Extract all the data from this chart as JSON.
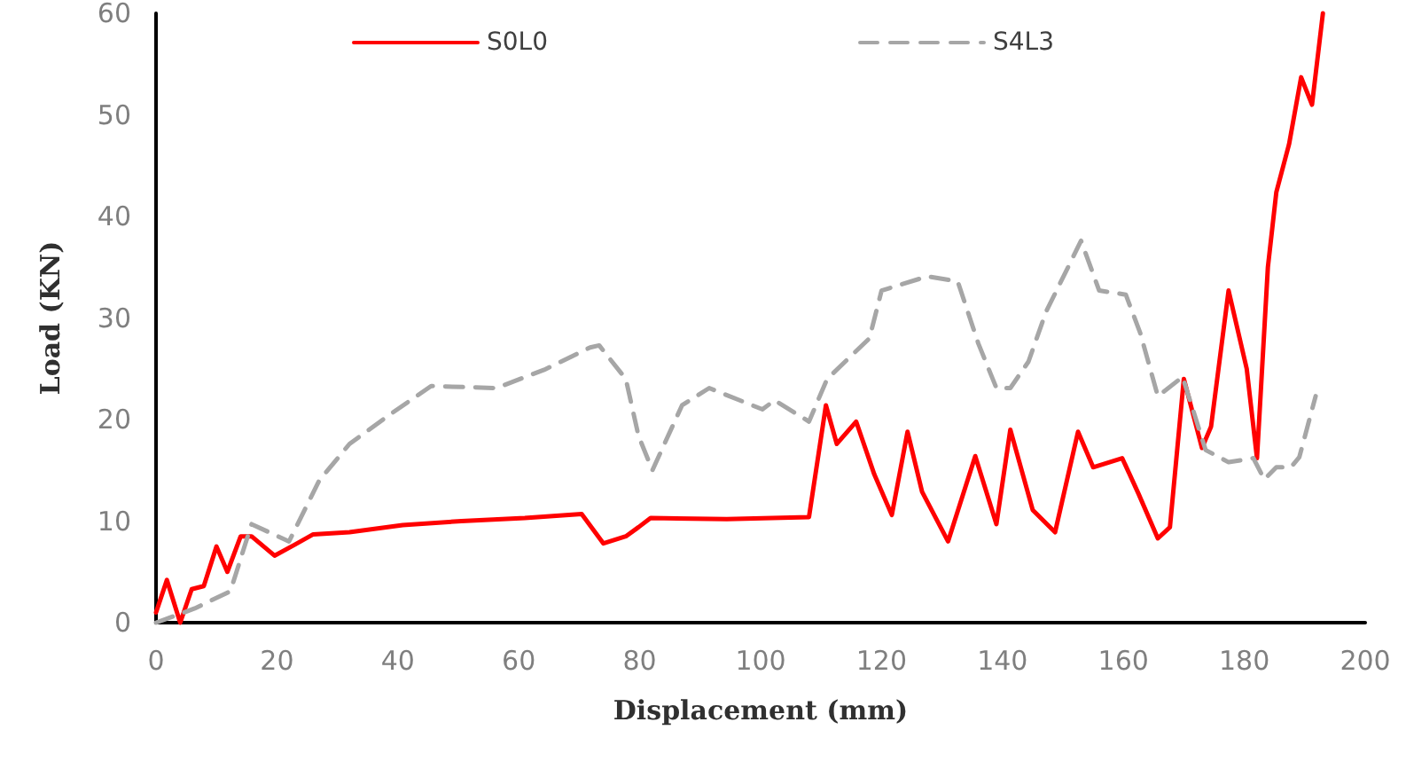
{
  "chart_data": {
    "type": "line",
    "xlabel": "Displacement (mm)",
    "ylabel": "Load (KN)",
    "xlim": [
      0,
      200
    ],
    "ylim": [
      0,
      60
    ],
    "xticks": [
      0,
      20,
      40,
      60,
      80,
      100,
      120,
      140,
      160,
      180,
      200
    ],
    "yticks": [
      0,
      10,
      20,
      30,
      40,
      50,
      60
    ],
    "grid": false,
    "legend": "top",
    "marker": "none",
    "series": [
      {
        "name": "S0L0",
        "color": "#ff0000",
        "line_style": "solid",
        "x": [
          0,
          1.8,
          4,
          5.9,
          7.9,
          10,
          11.8,
          14,
          15.8,
          19.6,
          23,
          26,
          32,
          40.8,
          50.5,
          61,
          70.4,
          74,
          77.7,
          79.8,
          81.8,
          94.4,
          108,
          110.8,
          112.6,
          115.8,
          118.8,
          121.7,
          124.3,
          126.7,
          131,
          135.5,
          139,
          141.3,
          145,
          148.7,
          152.5,
          155,
          159.8,
          162.5,
          165.7,
          167.7,
          170,
          173,
          174.5,
          177.4,
          180.4,
          182.1,
          183.9,
          185.3,
          187.4,
          189.4,
          191.2,
          193
        ],
        "values": [
          1,
          4.2,
          0,
          3.3,
          3.6,
          7.5,
          5,
          8.5,
          8.5,
          6.6,
          7.7,
          8.7,
          8.9,
          9.6,
          10,
          10.3,
          10.7,
          7.8,
          8.5,
          9.4,
          10.3,
          10.2,
          10.4,
          21.4,
          17.6,
          19.8,
          14.6,
          10.6,
          18.8,
          12.9,
          8,
          16.4,
          9.7,
          19,
          11.1,
          8.9,
          18.8,
          15.3,
          16.2,
          12.7,
          8.3,
          9.4,
          24,
          17.2,
          19.3,
          32.7,
          25,
          16.2,
          35,
          42.4,
          47.1,
          53.7,
          51,
          60
        ]
      },
      {
        "name": "S4L3",
        "color": "#a6a6a6",
        "line_style": "dashed",
        "x": [
          0,
          6.4,
          12.3,
          15.8,
          22,
          27,
          32,
          38.7,
          45.5,
          56.3,
          64.2,
          71.8,
          73.3,
          77.7,
          79.8,
          82.1,
          87,
          91.5,
          100.3,
          102.3,
          108,
          111,
          118,
          120,
          127.6,
          132.6,
          136,
          139,
          141.3,
          144.3,
          147.2,
          153,
          156,
          160.4,
          162.8,
          165.7,
          169.8,
          173.6,
          177.4,
          181.5,
          183.3,
          185.3,
          187.7,
          189.1,
          191.8
        ],
        "values": [
          0,
          1.4,
          3.1,
          9.7,
          8,
          14,
          17.6,
          20.5,
          23.3,
          23.1,
          24.9,
          27.1,
          27.3,
          24,
          18.4,
          15,
          21.4,
          23.1,
          21,
          21.9,
          19.8,
          24,
          28,
          32.7,
          34.1,
          33.6,
          27.5,
          23.1,
          23.1,
          25.7,
          30.6,
          37.6,
          32.7,
          32.3,
          28.5,
          22.3,
          24.2,
          17,
          15.8,
          16.2,
          14.1,
          15.3,
          15.3,
          16.3,
          22.3
        ]
      }
    ]
  }
}
